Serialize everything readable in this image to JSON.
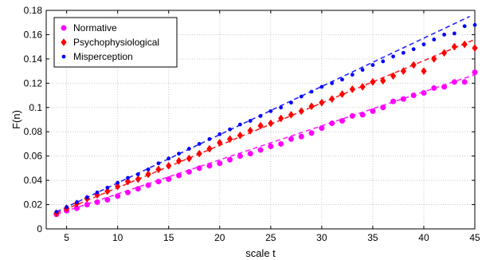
{
  "chart_data": {
    "type": "scatter",
    "title": "",
    "xlabel": "scale t",
    "ylabel": "F(n)",
    "xlim": [
      3,
      45
    ],
    "ylim": [
      0,
      0.18
    ],
    "xticks": [
      5,
      10,
      15,
      20,
      25,
      30,
      35,
      40,
      45
    ],
    "yticks": [
      0,
      0.02,
      0.04,
      0.06,
      0.08,
      0.1,
      0.12,
      0.14,
      0.16,
      0.18
    ],
    "xtick_labels": [
      "5",
      "10",
      "15",
      "20",
      "25",
      "30",
      "35",
      "40",
      "45"
    ],
    "ytick_labels": [
      "0",
      "0.02",
      "0.04",
      "0.06",
      "0.08",
      "0.1",
      "0.12",
      "0.14",
      "0.16",
      "0.18"
    ],
    "grid": true,
    "legend_position": "top-left",
    "series": [
      {
        "name": "Normative",
        "color": "#ff00ff",
        "marker": "circle",
        "x": [
          4,
          5,
          6,
          7,
          8,
          9,
          10,
          11,
          12,
          13,
          14,
          15,
          16,
          17,
          18,
          19,
          20,
          21,
          22,
          23,
          24,
          25,
          26,
          27,
          28,
          29,
          30,
          31,
          32,
          33,
          34,
          35,
          36,
          37,
          38,
          39,
          40,
          41,
          42,
          43,
          44,
          45
        ],
        "y": [
          0.012,
          0.015,
          0.017,
          0.02,
          0.022,
          0.024,
          0.027,
          0.03,
          0.033,
          0.036,
          0.039,
          0.041,
          0.044,
          0.047,
          0.05,
          0.052,
          0.054,
          0.057,
          0.06,
          0.062,
          0.065,
          0.068,
          0.07,
          0.074,
          0.076,
          0.079,
          0.083,
          0.087,
          0.089,
          0.093,
          0.094,
          0.097,
          0.1,
          0.105,
          0.107,
          0.11,
          0.112,
          0.116,
          0.117,
          0.121,
          0.121,
          0.129
        ],
        "fit": {
          "x": [
            4,
            45
          ],
          "y": [
            0.012,
            0.127
          ]
        }
      },
      {
        "name": "Psychophysiological",
        "color": "#ff0000",
        "marker": "diamond",
        "x": [
          4,
          5,
          6,
          7,
          8,
          9,
          10,
          11,
          12,
          13,
          14,
          15,
          16,
          17,
          18,
          19,
          20,
          21,
          22,
          23,
          24,
          25,
          26,
          27,
          28,
          29,
          30,
          31,
          32,
          33,
          34,
          35,
          36,
          37,
          38,
          39,
          40,
          41,
          42,
          43,
          44,
          45
        ],
        "y": [
          0.013,
          0.017,
          0.021,
          0.025,
          0.028,
          0.031,
          0.035,
          0.039,
          0.041,
          0.045,
          0.049,
          0.052,
          0.056,
          0.058,
          0.062,
          0.066,
          0.071,
          0.074,
          0.077,
          0.081,
          0.085,
          0.087,
          0.091,
          0.094,
          0.097,
          0.101,
          0.104,
          0.107,
          0.111,
          0.115,
          0.117,
          0.121,
          0.122,
          0.126,
          0.13,
          0.135,
          0.13,
          0.14,
          0.145,
          0.15,
          0.152,
          0.149
        ],
        "fit": {
          "x": [
            4,
            45
          ],
          "y": [
            0.013,
            0.156
          ]
        }
      },
      {
        "name": "Misperception",
        "color": "#0000ff",
        "marker": "dot",
        "x": [
          4,
          5,
          6,
          7,
          8,
          9,
          10,
          11,
          12,
          13,
          14,
          15,
          16,
          17,
          18,
          19,
          20,
          21,
          22,
          23,
          24,
          25,
          26,
          27,
          28,
          29,
          30,
          31,
          32,
          33,
          34,
          35,
          36,
          37,
          38,
          39,
          40,
          41,
          42,
          43,
          44,
          45
        ],
        "y": [
          0.014,
          0.018,
          0.022,
          0.026,
          0.03,
          0.034,
          0.038,
          0.042,
          0.045,
          0.049,
          0.054,
          0.058,
          0.062,
          0.066,
          0.07,
          0.074,
          0.078,
          0.082,
          0.086,
          0.089,
          0.093,
          0.097,
          0.1,
          0.104,
          0.109,
          0.113,
          0.117,
          0.12,
          0.123,
          0.127,
          0.131,
          0.135,
          0.138,
          0.142,
          0.145,
          0.148,
          0.152,
          0.156,
          0.16,
          0.161,
          0.167,
          0.168
        ],
        "fit": {
          "x": [
            4,
            44.5
          ],
          "y": [
            0.014,
            0.175
          ]
        }
      }
    ]
  }
}
